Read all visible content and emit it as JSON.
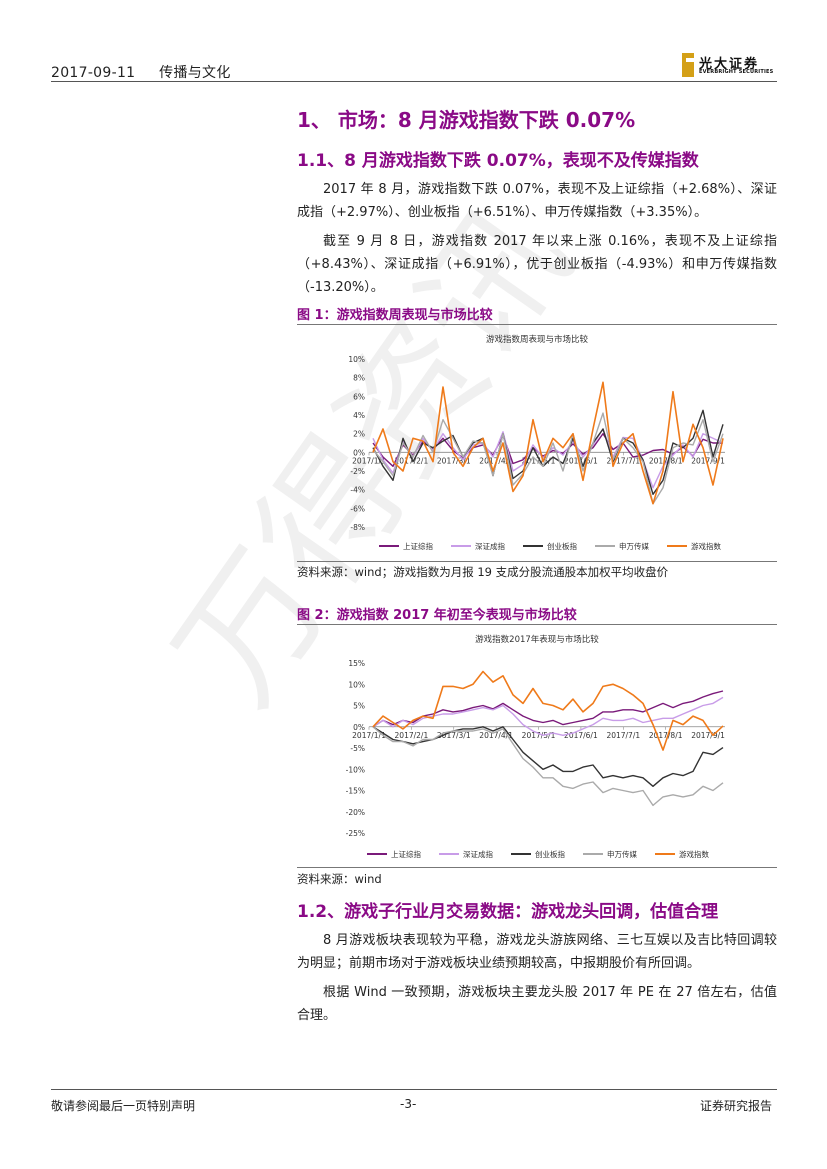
{
  "header": {
    "date": "2017-09-11",
    "section": "传播与文化",
    "logo_cn": "光大证券",
    "logo_en": "EVERBRIGHT SECURITIES"
  },
  "headings": {
    "h1": "1、 市场：8 月游戏指数下跌 0.07%",
    "h2_1": "1.1、8 月游戏指数下跌 0.07%，表现不及传媒指数",
    "h2_2": "1.2、游戏子行业月交易数据：游戏龙头回调，估值合理"
  },
  "paragraphs": {
    "p1": "2017 年 8 月，游戏指数下跌 0.07%，表现不及上证综指（+2.68%）、深证成指（+2.97%）、创业板指（+6.51%）、申万传媒指数（+3.35%）。",
    "p2": "截至 9 月 8 日，游戏指数 2017 年以来上涨 0.16%，表现不及上证综指（+8.43%）、深证成指（+6.91%），优于创业板指（-4.93%）和申万传媒指数（-13.20%）。",
    "p3": "8 月游戏板块表现较为平稳，游戏龙头游族网络、三七互娱以及吉比特回调较为明显；前期市场对于游戏板块业绩预期较高，中报期股价有所回调。",
    "p4": "根据 Wind 一致预期，游戏板块主要龙头股 2017 年 PE 在 27 倍左右，估值合理。"
  },
  "figures": {
    "fig1": {
      "caption": "图 1：游戏指数周表现与市场比较",
      "source": "资料来源：wind；游戏指数为月报 19 支成分股流通股本加权平均收盘价"
    },
    "fig2": {
      "caption": "图 2：游戏指数 2017 年初至今表现与市场比较",
      "source": "资料来源：wind"
    }
  },
  "footer": {
    "left": "敬请参阅最后一页特别声明",
    "page": "-3-",
    "right": "证券研究报告"
  },
  "watermark": "万得资讯",
  "chart_data": [
    {
      "type": "line",
      "title": "游戏指数周表现与市场比较",
      "ylim": [
        -8,
        10
      ],
      "yticks": [
        "10%",
        "8%",
        "6%",
        "4%",
        "2%",
        "0%",
        "-2%",
        "-4%",
        "-6%",
        "-8%"
      ],
      "xticks": [
        "2017/1/1",
        "2017/2/1",
        "2017/3/1",
        "2017/4/1",
        "2017/5/1",
        "2017/6/1",
        "2017/7/1",
        "2017/8/1",
        "2017/9/1"
      ],
      "legend": "bottom",
      "series": [
        {
          "name": "上证综指",
          "color": "#7a1a7a",
          "values": [
            1.0,
            -0.5,
            -1.5,
            0.8,
            -0.3,
            1.2,
            0.3,
            1.5,
            0.2,
            -0.6,
            0.5,
            0.8,
            -0.3,
            1.8,
            -1.2,
            -0.8,
            0.5,
            -0.4,
            0.2,
            -0.1,
            0.9,
            -0.2,
            0.5,
            2.0,
            0.3,
            1.0,
            -0.5,
            -0.3,
            0.2,
            0.3,
            -0.2,
            0.6,
            -0.4,
            1.4,
            1.0,
            1.0
          ]
        },
        {
          "name": "深证成指",
          "color": "#c89ce8",
          "values": [
            1.5,
            -0.8,
            -2.2,
            1.2,
            -0.5,
            1.5,
            0.2,
            2.0,
            0.5,
            -0.8,
            0.8,
            1.0,
            -0.5,
            2.2,
            -2.0,
            -1.3,
            0.8,
            -0.6,
            0.5,
            -0.3,
            1.2,
            -0.5,
            0.8,
            2.5,
            -0.5,
            1.6,
            1.5,
            -0.8,
            -3.8,
            -1.5,
            -0.3,
            0.8,
            -0.5,
            2.0,
            1.5,
            1.0
          ]
        },
        {
          "name": "创业板指",
          "color": "#333333",
          "values": [
            0.5,
            -1.5,
            -3.0,
            1.5,
            -1.0,
            1.0,
            0.5,
            1.2,
            1.8,
            -0.5,
            1.0,
            1.5,
            -2.5,
            2.0,
            -2.8,
            -2.0,
            0.5,
            -1.5,
            -0.5,
            -1.2,
            1.5,
            -1.5,
            1.0,
            2.5,
            -1.0,
            1.5,
            1.0,
            -0.8,
            -4.5,
            -3.0,
            1.0,
            0.5,
            1.5,
            4.5,
            -0.5,
            3.0
          ]
        },
        {
          "name": "申万传媒",
          "color": "#aaaaaa",
          "values": [
            0.3,
            -1.0,
            -2.5,
            1.0,
            -0.5,
            1.8,
            0.0,
            3.5,
            1.5,
            -0.5,
            1.2,
            1.0,
            -2.5,
            2.0,
            -3.5,
            -2.3,
            -0.5,
            -1.5,
            1.0,
            -2.0,
            2.0,
            -2.0,
            1.0,
            4.2,
            -0.8,
            1.5,
            0.5,
            -1.0,
            -5.5,
            -3.8,
            0.5,
            1.0,
            0.8,
            3.5,
            -1.0,
            2.0
          ]
        },
        {
          "name": "游戏指数",
          "color": "#ef7a1a",
          "values": [
            0.0,
            2.5,
            -1.0,
            -2.0,
            1.5,
            1.2,
            -1.0,
            7.0,
            0.0,
            -1.5,
            0.5,
            1.5,
            -2.0,
            1.0,
            -4.2,
            -2.5,
            3.5,
            -1.0,
            1.5,
            0.5,
            2.0,
            -3.0,
            2.5,
            7.5,
            -1.5,
            1.0,
            2.0,
            -2.0,
            -5.5,
            -2.0,
            6.5,
            -1.0,
            3.0,
            0.5,
            -3.5,
            1.5
          ]
        }
      ]
    },
    {
      "type": "line",
      "title": "游戏指数2017年表现与市场比较",
      "ylim": [
        -25,
        15
      ],
      "yticks": [
        "15%",
        "10%",
        "5%",
        "0%",
        "-5%",
        "-10%",
        "-15%",
        "-20%",
        "-25%"
      ],
      "xticks": [
        "2017/1/1",
        "2017/2/1",
        "2017/3/1",
        "2017/4/1",
        "2017/5/1",
        "2017/6/1",
        "2017/7/1",
        "2017/8/1",
        "2017/9/1"
      ],
      "legend": "bottom",
      "series": [
        {
          "name": "上证综指",
          "color": "#7a1a7a",
          "values": [
            0.0,
            1.5,
            0.5,
            1.5,
            1.0,
            2.5,
            3.0,
            4.0,
            3.5,
            3.8,
            4.5,
            5.0,
            4.2,
            5.5,
            4.0,
            2.5,
            1.5,
            1.0,
            1.5,
            0.5,
            1.0,
            1.5,
            2.0,
            3.5,
            3.5,
            4.0,
            4.0,
            3.5,
            4.5,
            5.5,
            4.5,
            5.5,
            6.0,
            7.0,
            7.8,
            8.4
          ]
        },
        {
          "name": "深证成指",
          "color": "#c89ce8",
          "values": [
            0.0,
            1.5,
            0.0,
            1.5,
            0.5,
            2.0,
            2.5,
            3.0,
            3.0,
            3.5,
            4.0,
            4.5,
            4.0,
            5.0,
            3.0,
            0.5,
            -1.0,
            -2.0,
            -1.5,
            -2.0,
            -1.5,
            -0.5,
            0.5,
            2.0,
            1.5,
            1.5,
            2.0,
            1.0,
            1.5,
            2.0,
            2.0,
            3.0,
            4.0,
            5.0,
            5.5,
            6.9
          ]
        },
        {
          "name": "创业板指",
          "color": "#333333",
          "values": [
            0.0,
            -1.5,
            -3.0,
            -3.5,
            -4.0,
            -3.5,
            -3.0,
            -2.0,
            -1.0,
            -0.5,
            -0.5,
            0.0,
            -1.0,
            0.0,
            -3.0,
            -6.0,
            -8.0,
            -10.0,
            -9.0,
            -10.5,
            -10.5,
            -9.5,
            -9.0,
            -12.0,
            -11.5,
            -12.0,
            -11.5,
            -12.0,
            -14.0,
            -12.0,
            -11.0,
            -11.5,
            -10.5,
            -6.0,
            -6.5,
            -4.9
          ]
        },
        {
          "name": "申万传媒",
          "color": "#aaaaaa",
          "values": [
            0.0,
            -2.0,
            -3.5,
            -3.5,
            -4.5,
            -3.0,
            -3.0,
            -1.5,
            -1.0,
            -1.0,
            -1.0,
            -0.5,
            -1.5,
            -0.5,
            -4.0,
            -7.5,
            -9.5,
            -12.0,
            -12.0,
            -14.0,
            -14.5,
            -13.5,
            -13.0,
            -15.5,
            -14.5,
            -15.0,
            -15.5,
            -15.0,
            -18.5,
            -16.5,
            -16.0,
            -16.5,
            -16.0,
            -14.0,
            -15.0,
            -13.2
          ]
        },
        {
          "name": "游戏指数",
          "color": "#ef7a1a",
          "values": [
            0.0,
            2.5,
            1.0,
            -0.5,
            1.5,
            2.5,
            2.0,
            9.5,
            9.5,
            9.0,
            10.0,
            13.0,
            10.5,
            12.0,
            7.5,
            5.5,
            9.0,
            5.5,
            5.0,
            4.0,
            6.5,
            3.5,
            5.5,
            9.5,
            10.0,
            9.0,
            7.5,
            5.5,
            0.5,
            -5.5,
            1.5,
            0.5,
            2.5,
            1.5,
            -2.0,
            0.2
          ]
        }
      ]
    }
  ]
}
